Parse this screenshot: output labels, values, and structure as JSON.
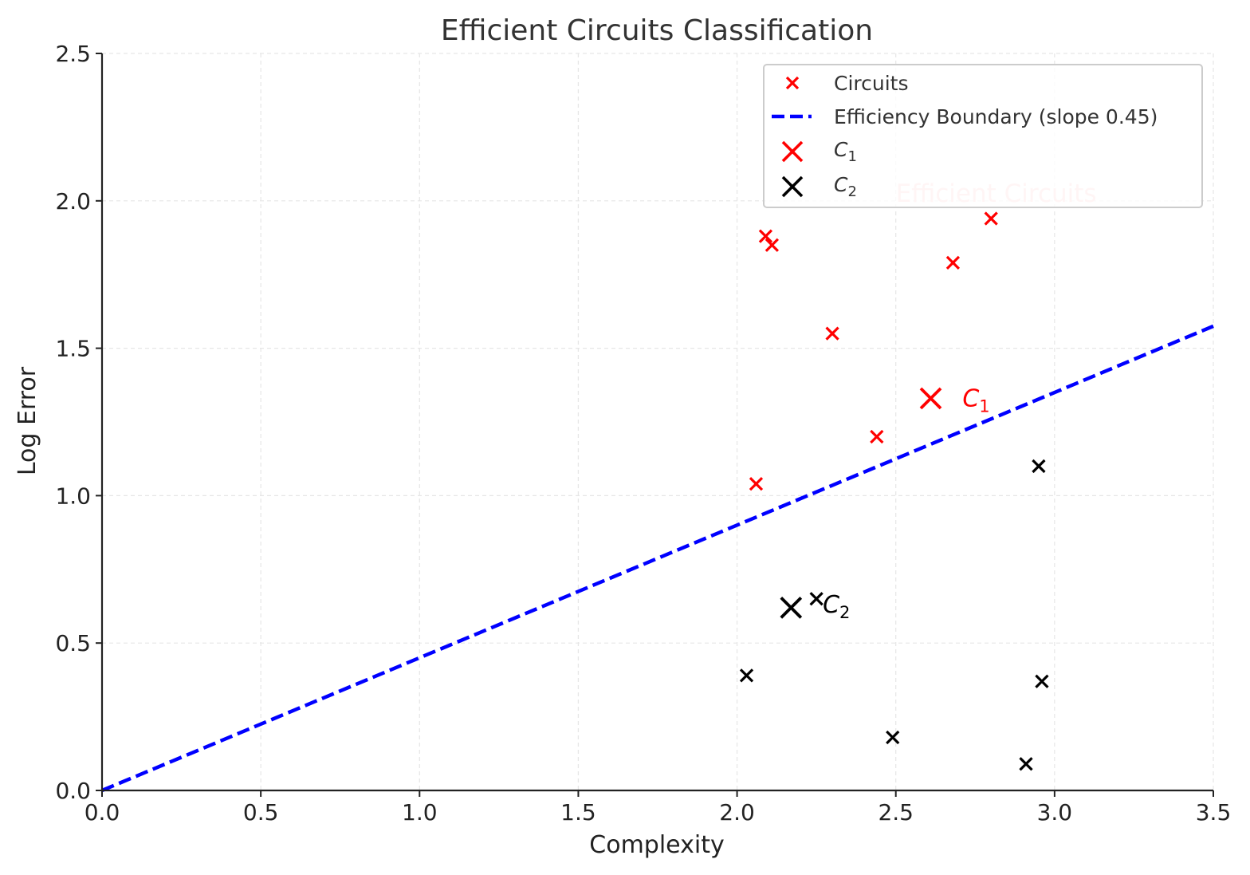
{
  "chart_data": {
    "type": "scatter",
    "title": "Efficient Circuits Classification",
    "xlabel": "Complexity",
    "ylabel": "Log Error",
    "xlim": [
      0,
      3.5
    ],
    "ylim": [
      0,
      2.5
    ],
    "xticks": [
      "0.0",
      "0.5",
      "1.0",
      "1.5",
      "2.0",
      "2.5",
      "3.0",
      "3.5"
    ],
    "yticks": [
      "0.0",
      "0.5",
      "1.0",
      "1.5",
      "2.0",
      "2.5"
    ],
    "grid": true,
    "legend_position": "top-right",
    "colors": {
      "efficient": "#ff0000",
      "inefficient": "#000000",
      "boundary": "#0000ff",
      "region_label": "#ffcccc"
    },
    "boundary": {
      "label": "Efficiency Boundary (slope 0.45)",
      "slope": 0.45
    },
    "series": [
      {
        "name": "Circuits",
        "points": [
          {
            "x": 2.06,
            "y": 1.04,
            "color": "#ff0000"
          },
          {
            "x": 2.09,
            "y": 1.88,
            "color": "#ff0000"
          },
          {
            "x": 2.11,
            "y": 1.85,
            "color": "#ff0000"
          },
          {
            "x": 2.3,
            "y": 1.55,
            "color": "#ff0000"
          },
          {
            "x": 2.44,
            "y": 1.2,
            "color": "#ff0000"
          },
          {
            "x": 2.68,
            "y": 1.79,
            "color": "#ff0000"
          },
          {
            "x": 2.8,
            "y": 1.94,
            "color": "#ff0000"
          },
          {
            "x": 2.03,
            "y": 0.39,
            "color": "#000000"
          },
          {
            "x": 2.25,
            "y": 0.65,
            "color": "#000000"
          },
          {
            "x": 2.49,
            "y": 0.18,
            "color": "#000000"
          },
          {
            "x": 2.91,
            "y": 0.09,
            "color": "#000000"
          },
          {
            "x": 2.95,
            "y": 1.1,
            "color": "#000000"
          },
          {
            "x": 2.96,
            "y": 0.37,
            "color": "#000000"
          }
        ]
      },
      {
        "name": "C1",
        "x": 2.61,
        "y": 1.33,
        "color": "#ff0000"
      },
      {
        "name": "C2",
        "x": 2.17,
        "y": 0.62,
        "color": "#000000"
      }
    ],
    "annotations": [
      {
        "base": "C",
        "sub": "1",
        "x": 2.71,
        "y": 1.33,
        "color": "#ff0000"
      },
      {
        "base": "C",
        "sub": "2",
        "x": 2.27,
        "y": 0.63,
        "color": "#000000"
      },
      {
        "text": "Efficient Circuits",
        "x": 2.5,
        "y": 2.0,
        "color": "#ffcccc"
      }
    ],
    "legend": [
      {
        "label": "Circuits",
        "marker": "x-small",
        "color": "#ff0000"
      },
      {
        "label": "Efficiency Boundary (slope 0.45)",
        "marker": "dashed-line",
        "color": "#0000ff"
      },
      {
        "base": "C",
        "sub": "1",
        "marker": "x-large",
        "color": "#ff0000"
      },
      {
        "base": "C",
        "sub": "2",
        "marker": "x-large",
        "color": "#000000"
      }
    ]
  }
}
